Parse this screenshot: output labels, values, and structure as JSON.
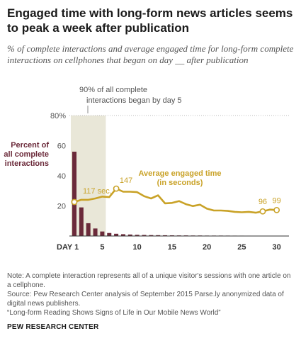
{
  "header": {
    "title": "Engaged time with long-form news articles seems to peak a week after publication",
    "subtitle": "% of complete interactions and average engaged time for long-form complete interactions on cellphones that began on day __ after publication"
  },
  "chart_data": {
    "type": "bar",
    "x": [
      1,
      2,
      3,
      4,
      5,
      6,
      7,
      8,
      9,
      10,
      11,
      12,
      13,
      14,
      15,
      16,
      17,
      18,
      19,
      20,
      21,
      22,
      23,
      24,
      25,
      26,
      27,
      28,
      29,
      30
    ],
    "x_tick_labels": [
      "DAY 1",
      "5",
      "10",
      "15",
      "20",
      "25",
      "30"
    ],
    "x_tick_values": [
      1,
      5,
      10,
      15,
      20,
      25,
      30
    ],
    "ylim": [
      0,
      80
    ],
    "y_ticks": [
      20,
      40,
      60,
      80
    ],
    "y_tick_labels": [
      "20",
      "40",
      "60",
      "80%"
    ],
    "grid": false,
    "series": [
      {
        "name": "Percent of all complete interactions",
        "type": "bar",
        "color": "#6b2a3a",
        "values": [
          56,
          19,
          8.5,
          5,
          3,
          2,
          1.5,
          1.2,
          1,
          0.8,
          0.7,
          0.6,
          0.55,
          0.5,
          0.45,
          0.4,
          0.4,
          0.35,
          0.35,
          0.3,
          0.3,
          0.3,
          0.28,
          0.26,
          0.25,
          0.24,
          0.23,
          0.22,
          0.21,
          0.2
        ]
      },
      {
        "name": "Average engaged time (in seconds)",
        "type": "line",
        "color": "#c9a227",
        "values": [
          117,
          122,
          122,
          125,
          129,
          128,
          147,
          140,
          140,
          139,
          130,
          125,
          132,
          114,
          115,
          119,
          112,
          108,
          111,
          102,
          98,
          98,
          97,
          95,
          94,
          95,
          93,
          96,
          100,
          99
        ]
      }
    ],
    "highlight": {
      "range": [
        1,
        5
      ],
      "color": "#e9e7d8",
      "label_line1": "90% of all complete",
      "label_line2": "interactions began by day 5"
    },
    "bar_label": [
      "Percent of",
      "all complete",
      "interactions"
    ],
    "line_label": [
      "Average engaged time",
      "(in seconds)"
    ],
    "line_annotations": [
      {
        "x": 1,
        "text": "117 sec."
      },
      {
        "x": 7,
        "text": "147"
      },
      {
        "x": 28,
        "text": "96"
      },
      {
        "x": 30,
        "text": "99"
      }
    ]
  },
  "footer": {
    "note": "Note: A complete interaction represents all of a unique visitor's sessions with one article on a cellphone.",
    "source": "Source: Pew Research Center analysis of September 2015 Parse.ly anonymized data of digital news publishers.",
    "report": "“Long-form Reading Shows Signs of Life in Our Mobile News World”",
    "brand": "PEW RESEARCH CENTER"
  }
}
